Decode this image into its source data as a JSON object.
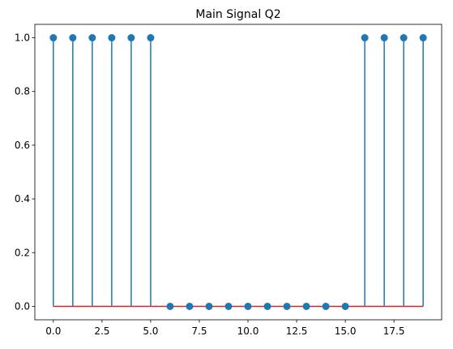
{
  "chart_data": {
    "type": "stem",
    "title": "Main Signal Q2",
    "xlabel": "",
    "ylabel": "",
    "x": [
      0,
      1,
      2,
      3,
      4,
      5,
      6,
      7,
      8,
      9,
      10,
      11,
      12,
      13,
      14,
      15,
      16,
      17,
      18,
      19
    ],
    "y": [
      1,
      1,
      1,
      1,
      1,
      1,
      0,
      0,
      0,
      0,
      0,
      0,
      0,
      0,
      0,
      0,
      1,
      1,
      1,
      1
    ],
    "xlim": [
      -0.95,
      19.95
    ],
    "ylim": [
      -0.05,
      1.05
    ],
    "xticks": [
      0,
      2.5,
      5,
      7.5,
      10,
      12.5,
      15,
      17.5
    ],
    "xtick_labels": [
      "0.0",
      "2.5",
      "5.0",
      "7.5",
      "10.0",
      "12.5",
      "15.0",
      "17.5"
    ],
    "yticks": [
      0,
      0.2,
      0.4,
      0.6,
      0.8,
      1.0
    ],
    "ytick_labels": [
      "0.0",
      "0.2",
      "0.4",
      "0.6",
      "0.8",
      "1.0"
    ],
    "grid": false,
    "colors": {
      "stem": "#1f77b4",
      "baseline": "#d62728",
      "axes": "#000000"
    }
  }
}
